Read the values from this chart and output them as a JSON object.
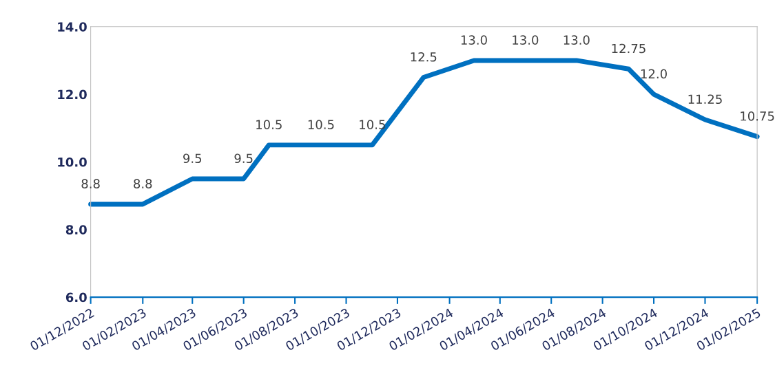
{
  "chart_data": {
    "type": "line",
    "x": [
      "2022-12-01",
      "2023-02-01",
      "2023-04-01",
      "2023-06-01",
      "2023-07-01",
      "2023-09-01",
      "2023-11-01",
      "2024-01-01",
      "2024-03-01",
      "2024-05-01",
      "2024-07-01",
      "2024-09-01",
      "2024-10-01",
      "2024-12-01",
      "2025-02-01"
    ],
    "series": [
      {
        "color": "#0070c0",
        "values": [
          8.75,
          8.75,
          9.5,
          9.5,
          10.5,
          10.5,
          10.5,
          12.5,
          13.0,
          13.0,
          13.0,
          12.75,
          12.0,
          11.25,
          10.75
        ],
        "value_labels": [
          "8.8",
          "8.8",
          "9.5",
          "9.5",
          "10.5",
          "10.5",
          "10.5",
          "12.5",
          "13.0",
          "13.0",
          "13.0",
          "12.75",
          "12.0",
          "11.25",
          "10.75"
        ]
      }
    ],
    "ylim": [
      6,
      14
    ],
    "yticks": [
      {
        "value": 6,
        "label": "6.0"
      },
      {
        "value": 8,
        "label": "8.0"
      },
      {
        "value": 10,
        "label": "10.0"
      },
      {
        "value": 12,
        "label": "12.0"
      },
      {
        "value": 14,
        "label": "14.0"
      }
    ],
    "xlim": [
      "2022-12-01",
      "2025-02-01"
    ],
    "xticks": [
      {
        "value": "2022-12-01",
        "label": "01/12/2022"
      },
      {
        "value": "2023-02-01",
        "label": "01/02/2023"
      },
      {
        "value": "2023-04-01",
        "label": "01/04/2023"
      },
      {
        "value": "2023-06-01",
        "label": "01/06/2023"
      },
      {
        "value": "2023-08-01",
        "label": "01/08/2023"
      },
      {
        "value": "2023-10-01",
        "label": "01/10/2023"
      },
      {
        "value": "2023-12-01",
        "label": "01/12/2023"
      },
      {
        "value": "2024-02-01",
        "label": "01/02/2024"
      },
      {
        "value": "2024-04-01",
        "label": "01/04/2024"
      },
      {
        "value": "2024-06-01",
        "label": "01/06/2024"
      },
      {
        "value": "2024-08-01",
        "label": "01/08/2024"
      },
      {
        "value": "2024-10-01",
        "label": "01/10/2024"
      },
      {
        "value": "2024-12-01",
        "label": "01/12/2024"
      },
      {
        "value": "2025-02-01",
        "label": "01/02/2025"
      }
    ],
    "grid": false,
    "marker": "none",
    "line_style": "solid"
  }
}
